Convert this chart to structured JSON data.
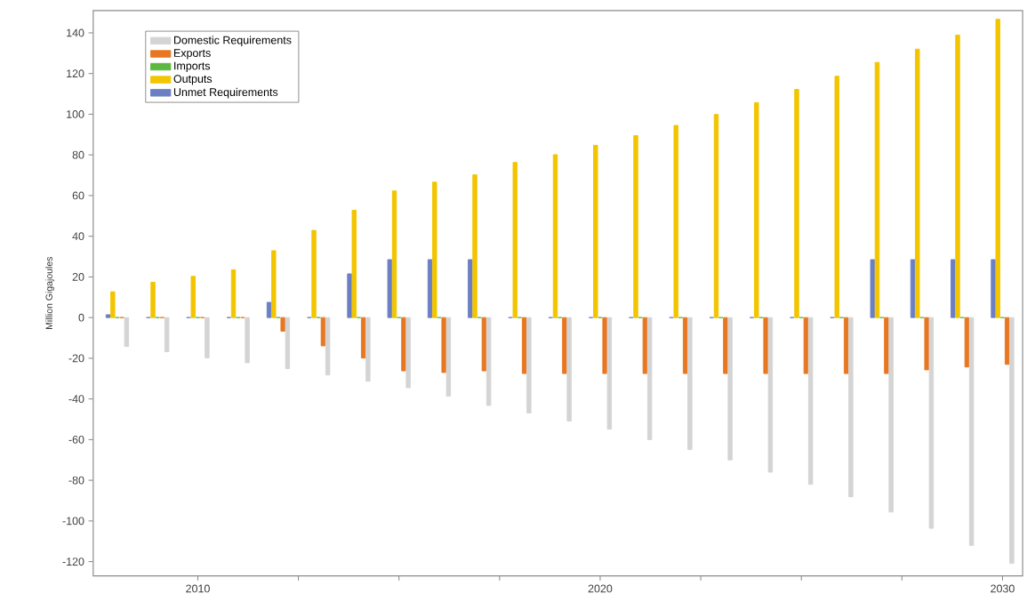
{
  "chart_data": {
    "type": "bar",
    "ylabel": "Million Gigajoules",
    "x": [
      2008,
      2009,
      2010,
      2011,
      2012,
      2013,
      2014,
      2015,
      2016,
      2017,
      2018,
      2019,
      2020,
      2021,
      2022,
      2023,
      2024,
      2025,
      2026,
      2027,
      2028,
      2029,
      2030
    ],
    "series": [
      {
        "name": "Unmet Requirements",
        "color": "#6b7fc4",
        "values": [
          1.4,
          0,
          0,
          0,
          7.5,
          0,
          21.5,
          28.5,
          28.5,
          28.5,
          0,
          0,
          0,
          0,
          0,
          0,
          0,
          0,
          0,
          28.5,
          28.5,
          28.5,
          28.5
        ]
      },
      {
        "name": "Outputs",
        "color": "#f2c500",
        "values": [
          12.7,
          17.4,
          20.3,
          23.5,
          32.9,
          42.9,
          52.8,
          62.3,
          66.6,
          70.2,
          76.3,
          80.1,
          84.7,
          89.5,
          94.5,
          99.9,
          105.7,
          112.2,
          118.7,
          125.5,
          132.0,
          138.9,
          146.7
        ]
      },
      {
        "name": "Imports",
        "color": "#5db83f",
        "values": [
          0,
          0,
          0,
          0,
          0,
          0,
          0,
          0,
          0,
          0,
          0,
          0,
          0,
          0,
          0,
          0,
          0,
          0,
          0,
          0,
          0,
          0,
          0
        ]
      },
      {
        "name": "Exports",
        "color": "#e87722",
        "values": [
          0,
          0,
          0,
          0,
          -6.7,
          -13.9,
          -19.9,
          -26.2,
          -27.0,
          -26.2,
          -27.5,
          -27.5,
          -27.5,
          -27.5,
          -27.5,
          -27.5,
          -27.5,
          -27.5,
          -27.5,
          -27.5,
          -25.7,
          -24.3,
          -23.0
        ]
      },
      {
        "name": "Domestic Requirements",
        "color": "#d4d4d4",
        "values": [
          -14.2,
          -16.8,
          -19.8,
          -22.2,
          -25.1,
          -28.2,
          -31.3,
          -34.5,
          -38.6,
          -43.2,
          -46.9,
          -50.9,
          -54.9,
          -60.0,
          -64.9,
          -70.0,
          -76.0,
          -82.0,
          -88.1,
          -95.6,
          -103.6,
          -112.0,
          -120.8
        ]
      }
    ],
    "xlim": [
      2007.4,
      2030.5
    ],
    "ylim": [
      -127,
      151
    ],
    "xticks": [
      2010,
      {
        "value": 2012.5,
        "label": null
      },
      {
        "value": 2015,
        "label": null
      },
      {
        "value": 2017.5,
        "label": null
      },
      2020,
      {
        "value": 2022.5,
        "label": null
      },
      {
        "value": 2025,
        "label": null
      },
      {
        "value": 2027.5,
        "label": null
      },
      2030
    ],
    "yticks": [
      -120,
      -100,
      -80,
      -60,
      -40,
      -20,
      0,
      20,
      40,
      60,
      80,
      100,
      120,
      140
    ],
    "legend": "top left",
    "grid": false
  }
}
